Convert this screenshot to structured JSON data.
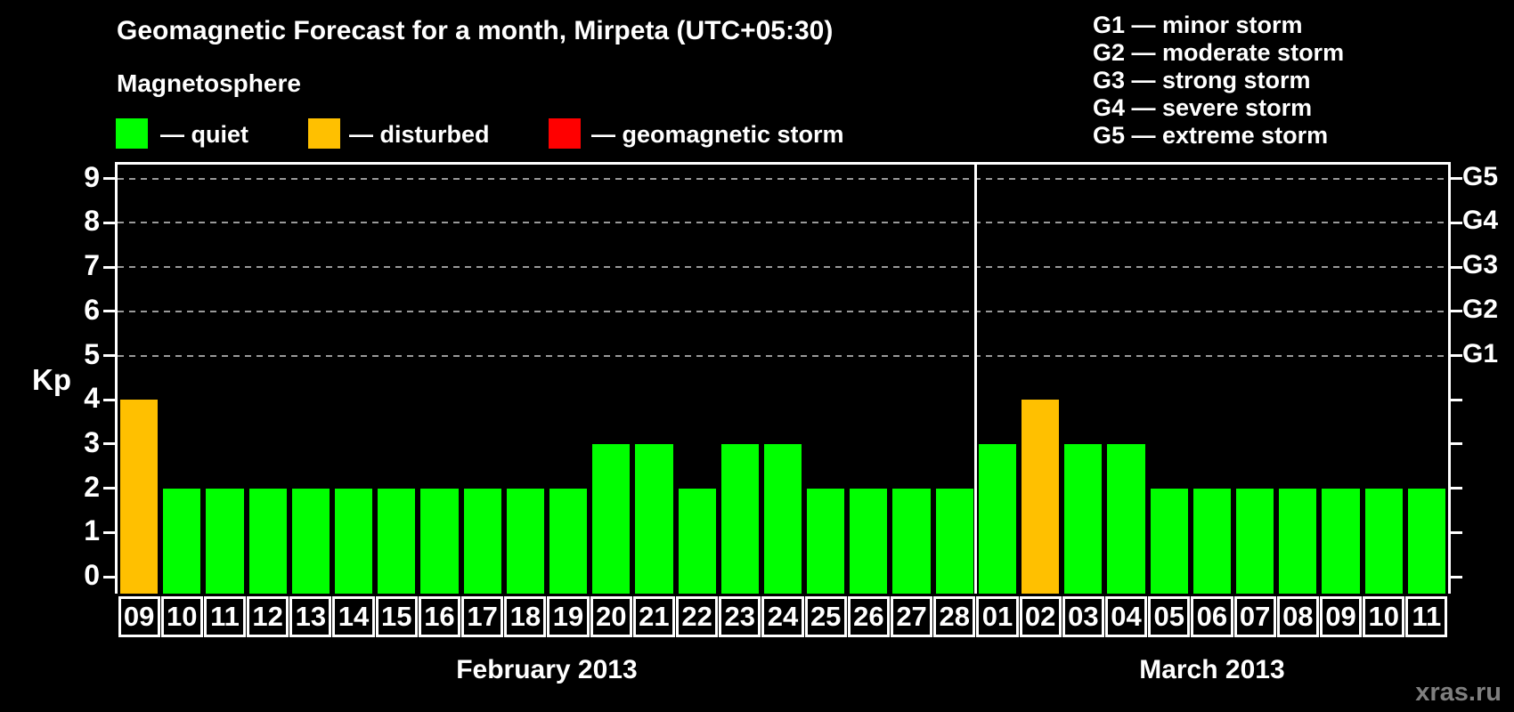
{
  "header": {
    "title": "Geomagnetic Forecast for a month, Mirpeta (UTC+05:30)",
    "subtitle": "Magnetosphere",
    "legend": [
      {
        "name": "quiet",
        "label": "— quiet",
        "color": "#00ff00"
      },
      {
        "name": "disturbed",
        "label": "— disturbed",
        "color": "#ffc000"
      },
      {
        "name": "geomagnetic-storm",
        "label": "— geomagnetic storm",
        "color": "#ff0000"
      }
    ],
    "g_scale_legend": [
      "G1 — minor storm",
      "G2 — moderate storm",
      "G3 — strong storm",
      "G4 — severe storm",
      "G5 — extreme storm"
    ]
  },
  "watermark": "xras.ru",
  "chart_data": {
    "type": "bar",
    "title": "Geomagnetic Forecast for a month, Mirpeta (UTC+05:30)",
    "ylabel": "Kp",
    "ylim": [
      -0.4,
      9.4
    ],
    "y_ticks": [
      0,
      1,
      2,
      3,
      4,
      5,
      6,
      7,
      8,
      9
    ],
    "gridlines_kp": [
      5,
      6,
      7,
      8,
      9
    ],
    "grid": "dashed horizontal at Kp 5-9 only",
    "right_axis_labels": [
      {
        "kp": 5,
        "label": "G1"
      },
      {
        "kp": 6,
        "label": "G2"
      },
      {
        "kp": 7,
        "label": "G3"
      },
      {
        "kp": 8,
        "label": "G4"
      },
      {
        "kp": 9,
        "label": "G5"
      }
    ],
    "colors": {
      "quiet": "#00ff00",
      "disturbed": "#ffc000",
      "storm": "#ff0000"
    },
    "months": [
      {
        "label": "February 2013",
        "days": [
          {
            "day": "09",
            "kp": 4,
            "status": "disturbed"
          },
          {
            "day": "10",
            "kp": 2,
            "status": "quiet"
          },
          {
            "day": "11",
            "kp": 2,
            "status": "quiet"
          },
          {
            "day": "12",
            "kp": 2,
            "status": "quiet"
          },
          {
            "day": "13",
            "kp": 2,
            "status": "quiet"
          },
          {
            "day": "14",
            "kp": 2,
            "status": "quiet"
          },
          {
            "day": "15",
            "kp": 2,
            "status": "quiet"
          },
          {
            "day": "16",
            "kp": 2,
            "status": "quiet"
          },
          {
            "day": "17",
            "kp": 2,
            "status": "quiet"
          },
          {
            "day": "18",
            "kp": 2,
            "status": "quiet"
          },
          {
            "day": "19",
            "kp": 2,
            "status": "quiet"
          },
          {
            "day": "20",
            "kp": 3,
            "status": "quiet"
          },
          {
            "day": "21",
            "kp": 3,
            "status": "quiet"
          },
          {
            "day": "22",
            "kp": 2,
            "status": "quiet"
          },
          {
            "day": "23",
            "kp": 3,
            "status": "quiet"
          },
          {
            "day": "24",
            "kp": 3,
            "status": "quiet"
          },
          {
            "day": "25",
            "kp": 2,
            "status": "quiet"
          },
          {
            "day": "26",
            "kp": 2,
            "status": "quiet"
          },
          {
            "day": "27",
            "kp": 2,
            "status": "quiet"
          },
          {
            "day": "28",
            "kp": 2,
            "status": "quiet"
          }
        ]
      },
      {
        "label": "March 2013",
        "days": [
          {
            "day": "01",
            "kp": 3,
            "status": "quiet"
          },
          {
            "day": "02",
            "kp": 4,
            "status": "disturbed"
          },
          {
            "day": "03",
            "kp": 3,
            "status": "quiet"
          },
          {
            "day": "04",
            "kp": 3,
            "status": "quiet"
          },
          {
            "day": "05",
            "kp": 2,
            "status": "quiet"
          },
          {
            "day": "06",
            "kp": 2,
            "status": "quiet"
          },
          {
            "day": "07",
            "kp": 2,
            "status": "quiet"
          },
          {
            "day": "08",
            "kp": 2,
            "status": "quiet"
          },
          {
            "day": "09",
            "kp": 2,
            "status": "quiet"
          },
          {
            "day": "10",
            "kp": 2,
            "status": "quiet"
          },
          {
            "day": "11",
            "kp": 2,
            "status": "quiet"
          }
        ]
      }
    ]
  }
}
